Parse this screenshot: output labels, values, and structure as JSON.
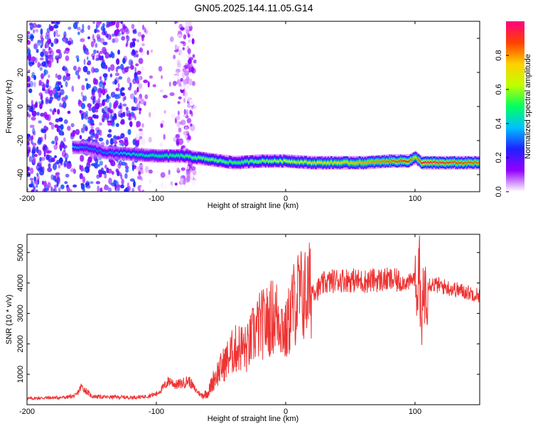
{
  "chart_data": [
    {
      "type": "heatmap",
      "title": "GN05.2025.144.11.05.G14",
      "xlabel": "Height of straight line (km)",
      "ylabel": "Frequency (Hz)",
      "xlim": [
        -200,
        150
      ],
      "ylim": [
        -50,
        50
      ],
      "x_ticks": [
        "-200",
        "-100",
        "0",
        "100"
      ],
      "x_tick_values": [
        -200,
        -100,
        0,
        100
      ],
      "y_ticks": [
        "-40",
        "-20",
        "0",
        "20",
        "40"
      ],
      "y_tick_values": [
        -40,
        -20,
        0,
        20,
        40
      ],
      "colorbar": {
        "label": "Normalized spectral amplitude",
        "range": [
          0,
          1
        ],
        "ticks": [
          "0.0",
          "0.2",
          "0.4",
          "0.6",
          "0.8"
        ],
        "tick_values": [
          0,
          0.2,
          0.4,
          0.6,
          0.8
        ],
        "colormap": [
          "#ffffff",
          "#9400ff",
          "#2020ff",
          "#00c0ff",
          "#00ff60",
          "#c0ff00",
          "#ffd000",
          "#ff4000",
          "#ff0080"
        ]
      },
      "dominant_track": {
        "x": [
          -165,
          -155,
          -140,
          -120,
          -100,
          -80,
          -60,
          -40,
          -20,
          0,
          20,
          40,
          60,
          80,
          95,
          100,
          105,
          120,
          150
        ],
        "frequency": [
          -24,
          -24,
          -27,
          -28,
          -29,
          -29,
          -31,
          -33,
          -32,
          -32,
          -33,
          -33,
          -33,
          -32,
          -32,
          -30,
          -33,
          -33,
          -33
        ],
        "amplitude": [
          0.35,
          0.3,
          0.3,
          0.4,
          0.45,
          0.5,
          0.55,
          0.5,
          0.55,
          0.6,
          0.65,
          0.7,
          0.75,
          0.8,
          0.85,
          0.7,
          0.9,
          0.85,
          0.8
        ]
      },
      "noise_region": {
        "x_start": -200,
        "x_end": -70,
        "x_dense_end": -115
      },
      "grid": false
    },
    {
      "type": "line",
      "xlabel": "Height of straight line (km)",
      "ylabel": "SNR (10 * v/v)",
      "xlim": [
        -200,
        150
      ],
      "ylim": [
        0,
        5600
      ],
      "x_ticks": [
        "-200",
        "-100",
        "0",
        "100"
      ],
      "x_tick_values": [
        -200,
        -100,
        0,
        100
      ],
      "y_ticks": [
        "1000",
        "2000",
        "3000",
        "4000",
        "5000"
      ],
      "y_tick_values": [
        1000,
        2000,
        3000,
        4000,
        5000
      ],
      "color": "#ee3333",
      "x": [
        -200,
        -190,
        -180,
        -170,
        -162,
        -158,
        -150,
        -140,
        -130,
        -120,
        -110,
        -100,
        -95,
        -90,
        -85,
        -80,
        -75,
        -70,
        -65,
        -60,
        -55,
        -50,
        -45,
        -40,
        -35,
        -30,
        -25,
        -20,
        -15,
        -10,
        -5,
        0,
        5,
        10,
        15,
        20,
        25,
        30,
        40,
        50,
        60,
        70,
        80,
        90,
        95,
        100,
        103,
        105,
        107,
        110,
        120,
        130,
        140,
        150
      ],
      "values": [
        200,
        220,
        230,
        240,
        300,
        600,
        280,
        250,
        250,
        240,
        260,
        350,
        550,
        800,
        650,
        700,
        800,
        500,
        300,
        400,
        900,
        1200,
        1500,
        1800,
        1900,
        1800,
        2300,
        2600,
        2700,
        2900,
        2900,
        2300,
        3200,
        3600,
        3600,
        3800,
        3800,
        4000,
        4100,
        4100,
        4050,
        4100,
        4100,
        4050,
        4000,
        4200,
        3800,
        2700,
        3800,
        4000,
        3900,
        3800,
        3700,
        3600
      ]
    }
  ]
}
